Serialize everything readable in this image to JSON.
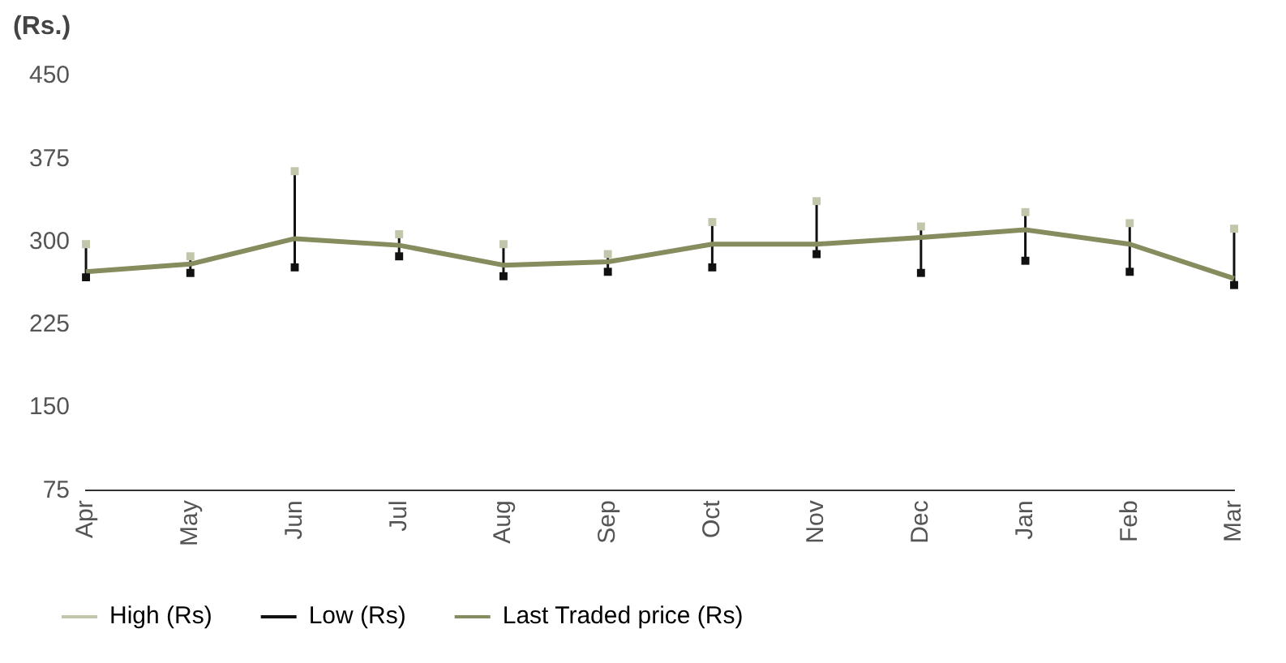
{
  "chart_data": {
    "type": "line",
    "ylabel": "(Rs.)",
    "categories": [
      "Apr",
      "May",
      "Jun",
      "Jul",
      "Aug",
      "Sep",
      "Oct",
      "Nov",
      "Dec",
      "Jan",
      "Feb",
      "Mar"
    ],
    "series": [
      {
        "name": "High (Rs)",
        "type": "scatter",
        "color": "#c2c6aa",
        "marker": "square",
        "values": [
          298,
          287,
          364,
          307,
          298,
          289,
          318,
          337,
          314,
          327,
          317,
          312
        ]
      },
      {
        "name": "Low (Rs)",
        "type": "scatter",
        "color": "#111111",
        "marker": "square",
        "values": [
          268,
          272,
          277,
          287,
          269,
          273,
          277,
          289,
          272,
          283,
          273,
          261
        ]
      },
      {
        "name": "Last Traded price (Rs)",
        "color": "#868c5e",
        "marker": "none",
        "values": [
          273,
          280,
          303,
          297,
          279,
          282,
          298,
          298,
          304,
          311,
          298,
          267
        ]
      }
    ],
    "ylim": [
      75,
      450
    ],
    "yticks": [
      75,
      150,
      225,
      300,
      375,
      450
    ],
    "grid": false,
    "legend": "bottom left"
  }
}
